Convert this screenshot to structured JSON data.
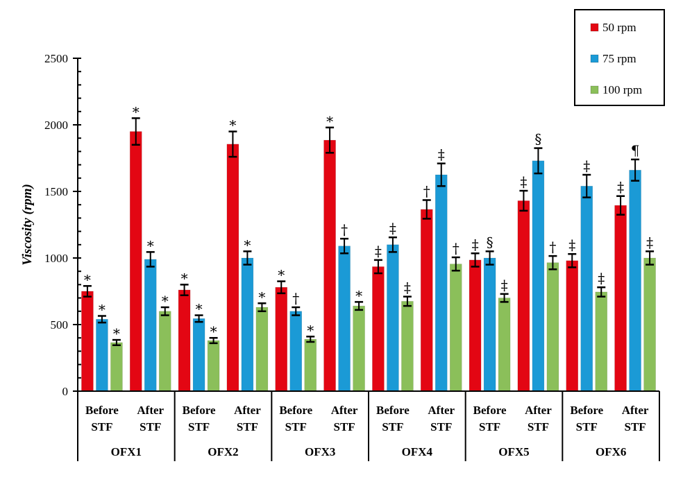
{
  "chart_data": {
    "type": "bar",
    "title": "",
    "xlabel": "",
    "ylabel": "Viscosity (rpm)",
    "ylim": [
      0,
      2500
    ],
    "yticks": [
      0,
      500,
      1000,
      1500,
      2000,
      2500
    ],
    "ytick_labels": [
      "0",
      "500",
      "1000",
      "1500",
      "2000",
      "2500"
    ],
    "minor_tick_step": 100,
    "grid": false,
    "legend_position": "top-right",
    "groups": [
      "OFX1",
      "OFX2",
      "OFX3",
      "OFX4",
      "OFX5",
      "OFX6"
    ],
    "subcategories": [
      [
        "Before",
        "STF"
      ],
      [
        "After",
        "STF"
      ]
    ],
    "categories": [
      "OFX1 Before STF",
      "OFX1 After STF",
      "OFX2 Before STF",
      "OFX2 After STF",
      "OFX3 Before STF",
      "OFX3 After STF",
      "OFX4 Before STF",
      "OFX4 After STF",
      "OFX5 Before STF",
      "OFX5 After STF",
      "OFX6 Before STF",
      "OFX6 After STF"
    ],
    "series": [
      {
        "name": "50 rpm",
        "color": "#e30613",
        "values": [
          750,
          1950,
          760,
          1855,
          780,
          1885,
          935,
          1365,
          985,
          1430,
          980,
          1395
        ],
        "errors": [
          40,
          100,
          40,
          95,
          45,
          95,
          50,
          70,
          50,
          75,
          50,
          70
        ],
        "annotations": [
          "*",
          "*",
          "*",
          "*",
          "*",
          "*",
          "‡",
          "†",
          "‡",
          "‡",
          "‡",
          "‡"
        ]
      },
      {
        "name": "75 rpm",
        "color": "#1b9ad6",
        "values": [
          540,
          990,
          545,
          1000,
          600,
          1090,
          1100,
          1625,
          1000,
          1730,
          1540,
          1660
        ],
        "errors": [
          25,
          55,
          25,
          50,
          30,
          55,
          55,
          85,
          50,
          95,
          85,
          80
        ],
        "annotations": [
          "*",
          "*",
          "*",
          "*",
          "†",
          "†",
          "‡",
          "‡",
          "§",
          "§",
          "‡",
          "¶"
        ]
      },
      {
        "name": "100 rpm",
        "color": "#8bbf5a",
        "values": [
          365,
          600,
          380,
          630,
          390,
          640,
          675,
          955,
          700,
          965,
          745,
          1000
        ],
        "errors": [
          20,
          30,
          20,
          30,
          20,
          30,
          35,
          50,
          30,
          50,
          35,
          50
        ],
        "annotations": [
          "*",
          "*",
          "*",
          "*",
          "*",
          "*",
          "‡",
          "†",
          "‡",
          "†",
          "‡",
          "‡"
        ]
      }
    ]
  }
}
